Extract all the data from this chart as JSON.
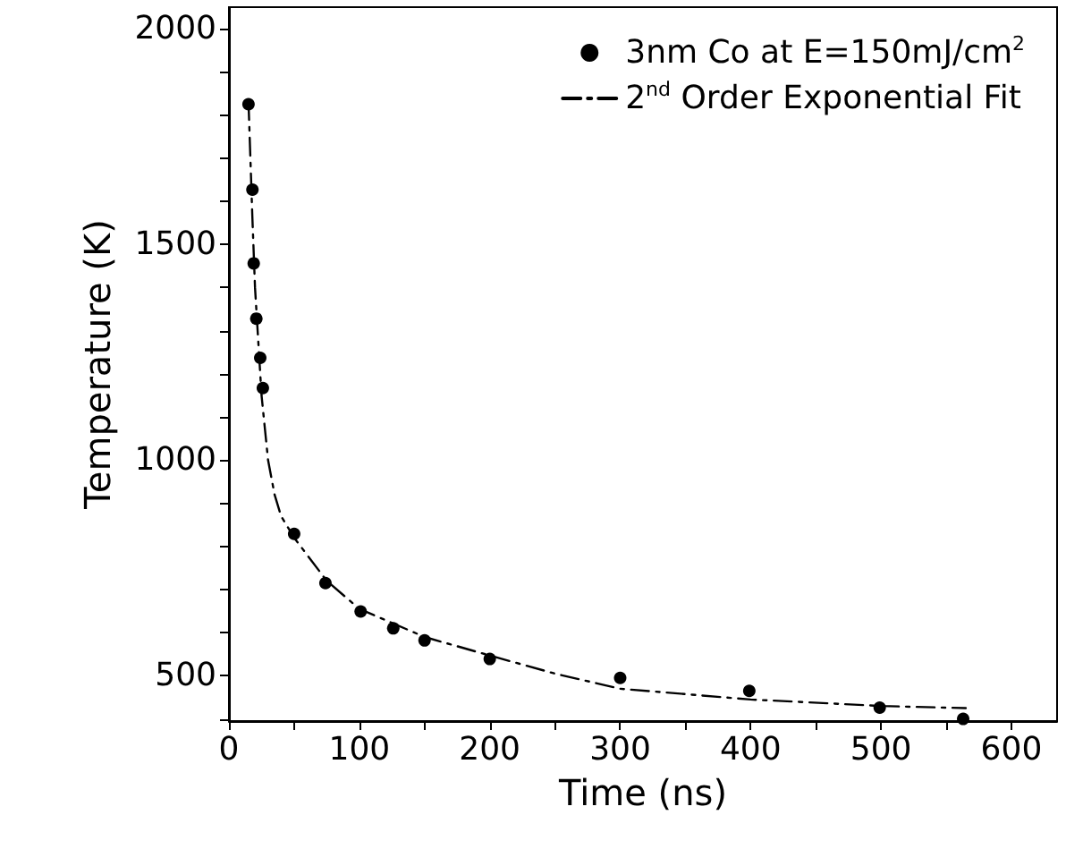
{
  "chart_data": {
    "type": "scatter",
    "xlabel": "Time (ns)",
    "ylabel": "Temperature (K)",
    "xlim": [
      0,
      635
    ],
    "xticks": [
      0,
      {
        "value": 50,
        "label": null
      },
      100,
      {
        "value": 150,
        "label": null
      },
      200,
      {
        "value": 250,
        "label": null
      },
      300,
      {
        "value": 350,
        "label": null
      },
      400,
      {
        "value": 450,
        "label": null
      },
      500,
      {
        "value": 550,
        "label": null
      },
      600
    ],
    "ylim": [
      395,
      2050
    ],
    "yticks": [
      {
        "value": 400,
        "label": null
      },
      500,
      {
        "value": 600,
        "label": null
      },
      {
        "value": 700,
        "label": null
      },
      {
        "value": 800,
        "label": null
      },
      {
        "value": 900,
        "label": null
      },
      1000,
      {
        "value": 1100,
        "label": null
      },
      {
        "value": 1200,
        "label": null
      },
      {
        "value": 1300,
        "label": null
      },
      {
        "value": 1400,
        "label": null
      },
      1500,
      {
        "value": 1600,
        "label": null
      },
      {
        "value": 1700,
        "label": null
      },
      {
        "value": 1800,
        "label": null
      },
      {
        "value": 1900,
        "label": null
      },
      2000
    ],
    "grid": false,
    "legend": "top right",
    "series": [
      {
        "name": "3nm Co at E=150mJ/cm$^{2}$",
        "type": "scatter",
        "marker": "circle",
        "color": "#000000",
        "x": [
          15,
          18,
          19,
          21,
          24,
          26,
          50,
          74,
          101,
          126,
          150,
          200,
          300,
          399,
          499,
          563
        ],
        "values": [
          1825,
          1627,
          1456,
          1328,
          1237,
          1167,
          829,
          715,
          649,
          610,
          582,
          539,
          495,
          465,
          426,
          400
        ]
      },
      {
        "name": "2$^{nd}$ Order Exponential Fit",
        "type": "line",
        "marker": "none",
        "line_style": "dashed",
        "color": "#000000",
        "x": [
          15,
          18,
          20,
          25,
          30,
          35,
          40,
          50,
          75,
          100,
          150,
          200,
          250,
          300,
          400,
          500,
          565
        ],
        "values": [
          1830,
          1560,
          1400,
          1150,
          1000,
          920,
          870,
          820,
          720,
          655,
          590,
          547,
          505,
          470,
          445,
          430,
          425
        ]
      }
    ]
  }
}
